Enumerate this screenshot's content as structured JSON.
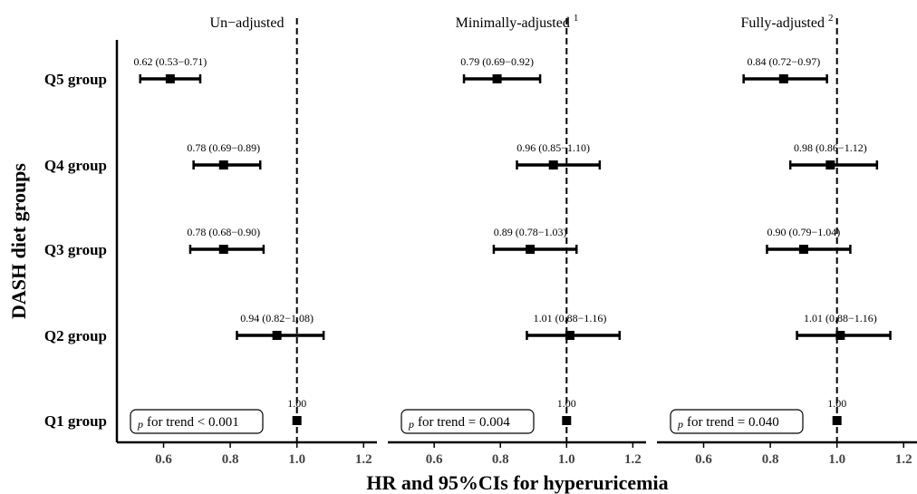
{
  "chart_data": {
    "type": "forest",
    "ylabel": "DASH diet groups",
    "xlabel": "HR and 95%CIs for hyperuricemia",
    "xlim": [
      0.46,
      1.24
    ],
    "xticks": [
      0.6,
      0.8,
      1.0,
      1.2
    ],
    "xtick_labels": [
      "0.6",
      "0.8",
      "1.0",
      "1.2"
    ],
    "reference_line": 1.0,
    "groups": [
      "Q5 group",
      "Q4 group",
      "Q3 group",
      "Q2 group",
      "Q1 group"
    ],
    "panels": [
      {
        "title": "Un−adjusted",
        "title_sup": "",
        "p_text": "for trend < 0.001",
        "points": [
          {
            "group": "Q5 group",
            "hr": 0.62,
            "lo": 0.53,
            "hi": 0.71,
            "label": "0.62 (0.53−0.71)"
          },
          {
            "group": "Q4 group",
            "hr": 0.78,
            "lo": 0.69,
            "hi": 0.89,
            "label": "0.78 (0.69−0.89)"
          },
          {
            "group": "Q3 group",
            "hr": 0.78,
            "lo": 0.68,
            "hi": 0.9,
            "label": "0.78 (0.68−0.90)"
          },
          {
            "group": "Q2 group",
            "hr": 0.94,
            "lo": 0.82,
            "hi": 1.08,
            "label": "0.94 (0.82−1.08)"
          },
          {
            "group": "Q1 group",
            "hr": 1.0,
            "lo": 1.0,
            "hi": 1.0,
            "label": "1.00"
          }
        ]
      },
      {
        "title": "Minimally-adjusted",
        "title_sup": "1",
        "p_text": "for trend = 0.004",
        "points": [
          {
            "group": "Q5 group",
            "hr": 0.79,
            "lo": 0.69,
            "hi": 0.92,
            "label": "0.79 (0.69−0.92)"
          },
          {
            "group": "Q4 group",
            "hr": 0.96,
            "lo": 0.85,
            "hi": 1.1,
            "label": "0.96 (0.85−1.10)"
          },
          {
            "group": "Q3 group",
            "hr": 0.89,
            "lo": 0.78,
            "hi": 1.03,
            "label": "0.89 (0.78−1.03)"
          },
          {
            "group": "Q2 group",
            "hr": 1.01,
            "lo": 0.88,
            "hi": 1.16,
            "label": "1.01 (0.88−1.16)"
          },
          {
            "group": "Q1 group",
            "hr": 1.0,
            "lo": 1.0,
            "hi": 1.0,
            "label": "1.00"
          }
        ]
      },
      {
        "title": "Fully-adjusted",
        "title_sup": "2",
        "p_text": "for trend = 0.040",
        "points": [
          {
            "group": "Q5 group",
            "hr": 0.84,
            "lo": 0.72,
            "hi": 0.97,
            "label": "0.84 (0.72−0.97)"
          },
          {
            "group": "Q4 group",
            "hr": 0.98,
            "lo": 0.86,
            "hi": 1.12,
            "label": "0.98 (0.86−1.12)"
          },
          {
            "group": "Q3 group",
            "hr": 0.9,
            "lo": 0.79,
            "hi": 1.04,
            "label": "0.90 (0.79−1.04)"
          },
          {
            "group": "Q2 group",
            "hr": 1.01,
            "lo": 0.88,
            "hi": 1.16,
            "label": "1.01 (0.88−1.16)"
          },
          {
            "group": "Q1 group",
            "hr": 1.0,
            "lo": 1.0,
            "hi": 1.0,
            "label": "1.00"
          }
        ]
      }
    ]
  }
}
